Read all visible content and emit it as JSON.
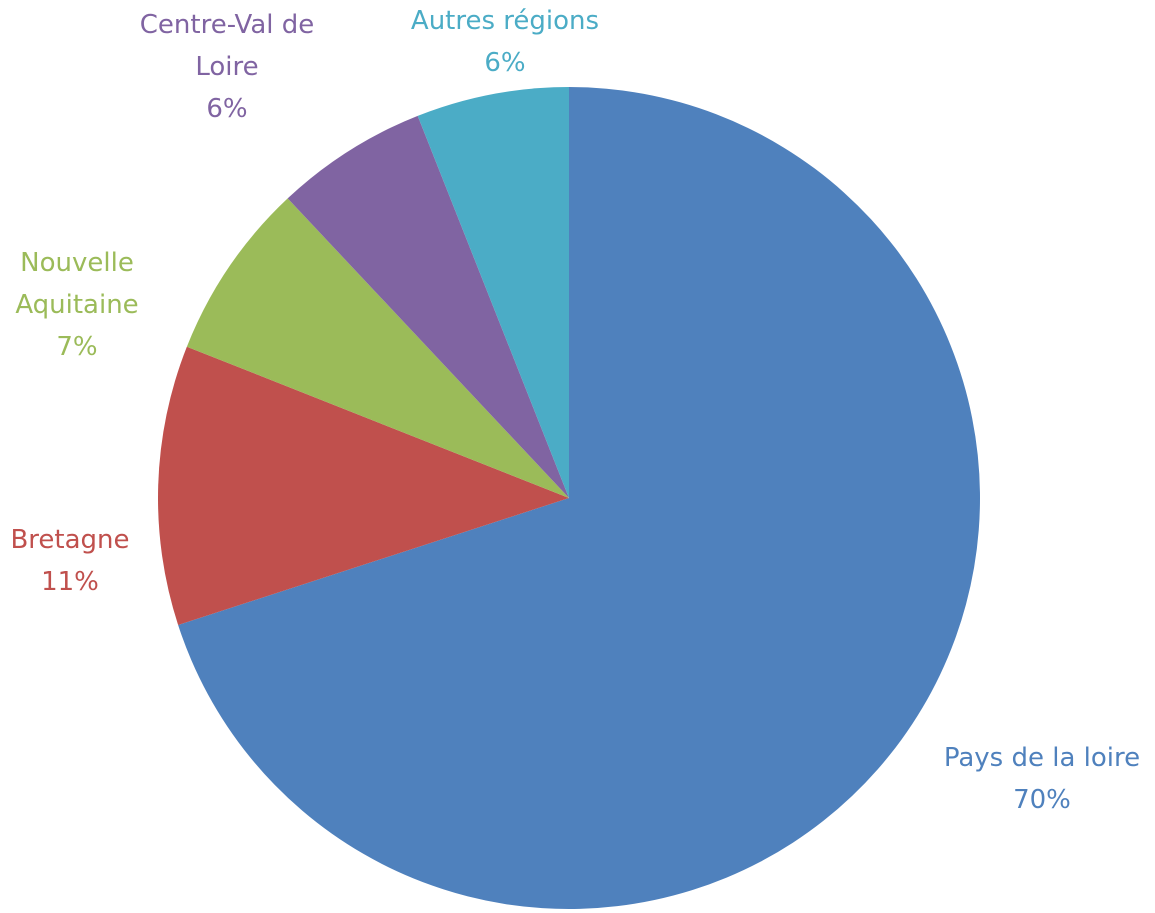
{
  "chart_data": {
    "type": "pie",
    "categories": [
      "Pays de la loire",
      "Bretagne",
      "Nouvelle Aquitaine",
      "Centre-Val de Loire",
      "Autres régions"
    ],
    "values": [
      70,
      11,
      7,
      6,
      6
    ],
    "value_labels": [
      "70%",
      "11%",
      "7%",
      "6%",
      "6%"
    ],
    "colors": [
      "#4f81bd",
      "#c0504d",
      "#9bbb59",
      "#8064a2",
      "#4bacc6"
    ]
  }
}
